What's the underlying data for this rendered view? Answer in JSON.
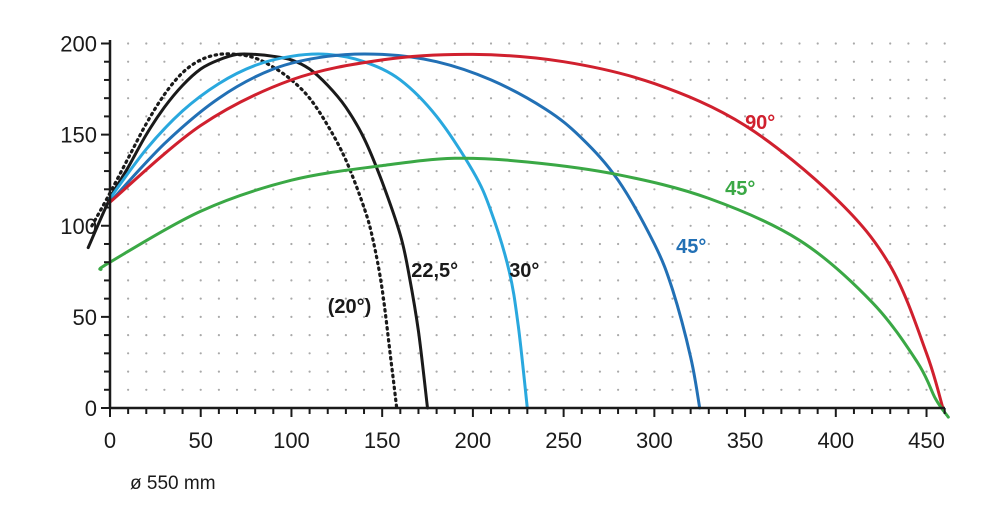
{
  "chart_data": {
    "type": "line",
    "caption": "ø 550 mm",
    "xlim": [
      0,
      460
    ],
    "ylim": [
      0,
      200
    ],
    "x_ticks": [
      "0",
      "50",
      "100",
      "150",
      "200",
      "250",
      "300",
      "350",
      "400",
      "450"
    ],
    "y_ticks": [
      "0",
      "50",
      "100",
      "150",
      "200"
    ],
    "grid": "dotted",
    "colors": {
      "black": "#1a1a1a",
      "light_blue": "#29a8de",
      "dark_blue": "#2270b5",
      "red": "#d0202e",
      "green": "#3aa845"
    },
    "series": [
      {
        "name": "(20°)",
        "color": "#1a1a1a",
        "dash": "dotted",
        "points": [
          [
            -10,
            100
          ],
          [
            0,
            118
          ],
          [
            10,
            137
          ],
          [
            20,
            156
          ],
          [
            30,
            172
          ],
          [
            40,
            184
          ],
          [
            50,
            191
          ],
          [
            60,
            194
          ],
          [
            70,
            194
          ],
          [
            80,
            192
          ],
          [
            90,
            187
          ],
          [
            100,
            180
          ],
          [
            110,
            170
          ],
          [
            120,
            155
          ],
          [
            130,
            136
          ],
          [
            140,
            110
          ],
          [
            145,
            92
          ],
          [
            150,
            65
          ],
          [
            155,
            25
          ],
          [
            158,
            0
          ]
        ]
      },
      {
        "name": "22,5°",
        "color": "#1a1a1a",
        "dash": "solid",
        "points": [
          [
            -12,
            88
          ],
          [
            0,
            115
          ],
          [
            10,
            132
          ],
          [
            20,
            150
          ],
          [
            30,
            165
          ],
          [
            40,
            177
          ],
          [
            50,
            186
          ],
          [
            60,
            191
          ],
          [
            70,
            194
          ],
          [
            80,
            194
          ],
          [
            90,
            193
          ],
          [
            100,
            191
          ],
          [
            110,
            186
          ],
          [
            120,
            177
          ],
          [
            130,
            165
          ],
          [
            140,
            148
          ],
          [
            150,
            124
          ],
          [
            160,
            95
          ],
          [
            165,
            72
          ],
          [
            170,
            42
          ],
          [
            175,
            0
          ]
        ]
      },
      {
        "name": "30°",
        "color": "#29a8de",
        "dash": "solid",
        "points": [
          [
            0,
            115
          ],
          [
            20,
            142
          ],
          [
            40,
            163
          ],
          [
            60,
            178
          ],
          [
            80,
            188
          ],
          [
            100,
            193
          ],
          [
            120,
            194
          ],
          [
            140,
            190
          ],
          [
            160,
            180
          ],
          [
            180,
            160
          ],
          [
            200,
            130
          ],
          [
            210,
            108
          ],
          [
            220,
            75
          ],
          [
            225,
            45
          ],
          [
            230,
            0
          ]
        ]
      },
      {
        "name": "45°",
        "color": "#2270b5",
        "dash": "solid",
        "points": [
          [
            0,
            113
          ],
          [
            30,
            145
          ],
          [
            60,
            170
          ],
          [
            90,
            186
          ],
          [
            120,
            193
          ],
          [
            150,
            194
          ],
          [
            180,
            190
          ],
          [
            210,
            180
          ],
          [
            240,
            164
          ],
          [
            260,
            148
          ],
          [
            280,
            125
          ],
          [
            300,
            90
          ],
          [
            310,
            65
          ],
          [
            320,
            28
          ],
          [
            325,
            0
          ]
        ]
      },
      {
        "name": "90°",
        "color": "#d0202e",
        "dash": "solid",
        "points": [
          [
            0,
            113
          ],
          [
            50,
            155
          ],
          [
            100,
            180
          ],
          [
            150,
            191
          ],
          [
            200,
            194
          ],
          [
            250,
            190
          ],
          [
            300,
            178
          ],
          [
            350,
            155
          ],
          [
            400,
            115
          ],
          [
            430,
            78
          ],
          [
            450,
            30
          ],
          [
            459,
            0
          ]
        ]
      },
      {
        "name": "45°",
        "color": "#3aa845",
        "dash": "solid",
        "points": [
          [
            -5,
            76
          ],
          [
            0,
            80
          ],
          [
            50,
            108
          ],
          [
            100,
            125
          ],
          [
            150,
            133
          ],
          [
            190,
            137
          ],
          [
            230,
            135
          ],
          [
            280,
            128
          ],
          [
            330,
            115
          ],
          [
            380,
            92
          ],
          [
            420,
            58
          ],
          [
            445,
            25
          ],
          [
            455,
            5
          ],
          [
            462,
            -5
          ]
        ]
      }
    ],
    "annotations": [
      {
        "text": "(20°)",
        "x": 120,
        "y": 52,
        "color": "#1a1a1a"
      },
      {
        "text": "22,5°",
        "x": 166,
        "y": 72,
        "color": "#1a1a1a"
      },
      {
        "text": "30°",
        "x": 220,
        "y": 72,
        "color": "#1a1a1a"
      },
      {
        "text": "45°",
        "x": 312,
        "y": 85,
        "color": "#2270b5"
      },
      {
        "text": "90°",
        "x": 350,
        "y": 153,
        "color": "#d0202e"
      },
      {
        "text": "45°",
        "x": 339,
        "y": 117,
        "color": "#3aa845"
      }
    ]
  }
}
